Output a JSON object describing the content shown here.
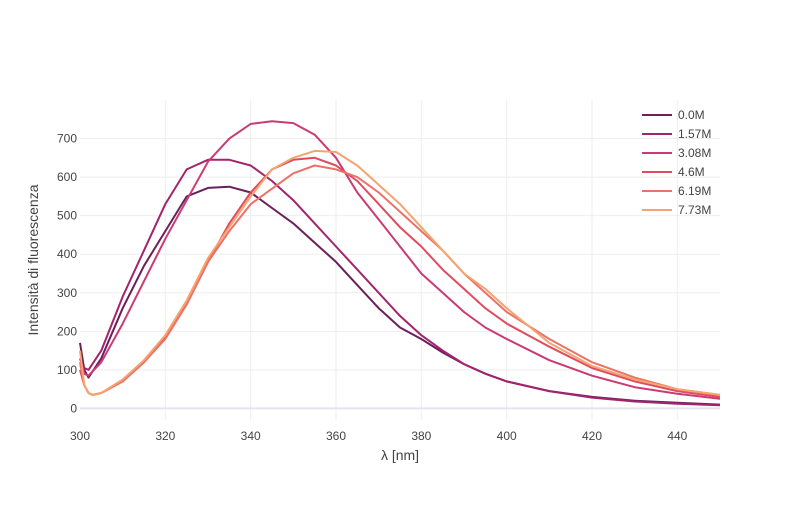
{
  "chart_data": {
    "type": "line",
    "title": "",
    "xlabel": "λ [nm]",
    "ylabel": "Intensità di fluorescenza",
    "xlim": [
      300,
      450
    ],
    "ylim": [
      -30,
      800
    ],
    "xticks": [
      300,
      320,
      340,
      360,
      380,
      400,
      420,
      440
    ],
    "yticks": [
      0,
      100,
      200,
      300,
      400,
      500,
      600,
      700
    ],
    "grid": true,
    "legend": "top-right",
    "series": [
      {
        "name": "0.0M",
        "color": "#6b1f5c",
        "x": [
          300,
          301,
          302,
          305,
          310,
          315,
          320,
          325,
          330,
          335,
          340,
          345,
          350,
          355,
          360,
          365,
          370,
          375,
          380,
          385,
          390,
          395,
          400,
          410,
          420,
          430,
          440,
          450
        ],
        "y": [
          170,
          100,
          80,
          130,
          260,
          370,
          460,
          550,
          572,
          575,
          560,
          520,
          480,
          430,
          380,
          320,
          260,
          210,
          180,
          145,
          115,
          90,
          70,
          45,
          30,
          20,
          15,
          10
        ]
      },
      {
        "name": "1.57M",
        "color": "#a3236c",
        "x": [
          300,
          301,
          302,
          305,
          310,
          315,
          320,
          325,
          330,
          335,
          340,
          345,
          350,
          355,
          360,
          365,
          370,
          375,
          380,
          385,
          390,
          395,
          400,
          410,
          420,
          430,
          440,
          450
        ],
        "y": [
          110,
          105,
          100,
          150,
          290,
          410,
          530,
          620,
          645,
          645,
          630,
          590,
          540,
          480,
          420,
          360,
          300,
          240,
          190,
          150,
          115,
          90,
          70,
          45,
          28,
          18,
          12,
          8
        ]
      },
      {
        "name": "3.08M",
        "color": "#cb3a72",
        "x": [
          300,
          301,
          302,
          305,
          310,
          315,
          320,
          325,
          330,
          335,
          340,
          345,
          350,
          355,
          360,
          365,
          370,
          375,
          380,
          385,
          390,
          395,
          400,
          410,
          420,
          430,
          440,
          450
        ],
        "y": [
          130,
          90,
          85,
          120,
          220,
          330,
          440,
          540,
          640,
          700,
          738,
          745,
          740,
          710,
          650,
          560,
          490,
          420,
          350,
          300,
          250,
          210,
          180,
          125,
          85,
          55,
          38,
          25
        ]
      },
      {
        "name": "4.6M",
        "color": "#e04b5f",
        "x": [
          300,
          301,
          302,
          303,
          305,
          310,
          315,
          320,
          325,
          330,
          335,
          340,
          345,
          350,
          355,
          360,
          365,
          370,
          375,
          380,
          385,
          390,
          395,
          400,
          410,
          420,
          430,
          440,
          450
        ],
        "y": [
          100,
          60,
          40,
          35,
          40,
          70,
          120,
          185,
          270,
          380,
          480,
          560,
          620,
          645,
          650,
          630,
          590,
          530,
          470,
          420,
          360,
          310,
          260,
          220,
          160,
          105,
          70,
          45,
          30
        ]
      },
      {
        "name": "6.19M",
        "color": "#ec7168",
        "x": [
          300,
          301,
          302,
          303,
          305,
          310,
          315,
          320,
          325,
          330,
          335,
          340,
          345,
          350,
          355,
          360,
          365,
          370,
          375,
          380,
          385,
          390,
          395,
          400,
          410,
          420,
          430,
          440,
          450
        ],
        "y": [
          120,
          60,
          40,
          35,
          40,
          70,
          120,
          180,
          270,
          380,
          460,
          530,
          570,
          610,
          630,
          620,
          600,
          560,
          510,
          460,
          410,
          350,
          300,
          250,
          180,
          120,
          80,
          50,
          35
        ]
      },
      {
        "name": "7.73M",
        "color": "#f5a36f",
        "x": [
          300,
          301,
          302,
          303,
          305,
          310,
          315,
          320,
          325,
          330,
          335,
          340,
          345,
          350,
          355,
          360,
          365,
          370,
          375,
          380,
          385,
          390,
          395,
          400,
          410,
          420,
          430,
          440,
          450
        ],
        "y": [
          150,
          60,
          40,
          35,
          40,
          75,
          125,
          190,
          280,
          390,
          470,
          550,
          620,
          650,
          668,
          665,
          630,
          580,
          530,
          470,
          410,
          350,
          310,
          260,
          170,
          110,
          75,
          50,
          35
        ]
      }
    ]
  }
}
